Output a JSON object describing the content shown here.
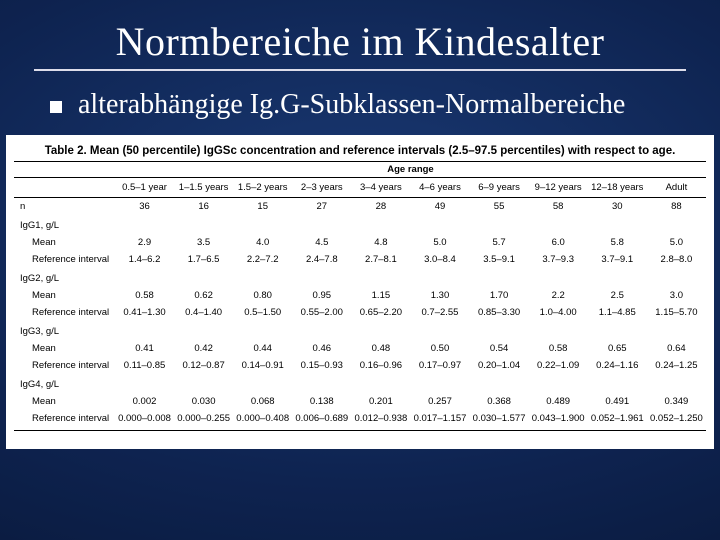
{
  "slide": {
    "title": "Normbereiche im Kindesalter",
    "bullet": "alterabhängige Ig.G-Subklassen-Normalbereiche"
  },
  "table": {
    "caption": "Table 2. Mean (50 percentile) IgGSc concentration and reference intervals (2.5–97.5 percentiles) with respect to age.",
    "age_header": "Age range",
    "columns": [
      "0.5–1 year",
      "1–1.5 years",
      "1.5–2 years",
      "2–3 years",
      "3–4 years",
      "4–6 years",
      "6–9 years",
      "9–12 years",
      "12–18 years",
      "Adult"
    ],
    "n_label": "n",
    "n_values": [
      "36",
      "16",
      "15",
      "27",
      "28",
      "49",
      "55",
      "58",
      "30",
      "88"
    ],
    "groups": [
      {
        "name": "IgG1, g/L",
        "mean_label": "Mean",
        "mean": [
          "2.9",
          "3.5",
          "4.0",
          "4.5",
          "4.8",
          "5.0",
          "5.7",
          "6.0",
          "5.8",
          "5.0"
        ],
        "ref_label": "Reference interval",
        "ref": [
          "1.4–6.2",
          "1.7–6.5",
          "2.2–7.2",
          "2.4–7.8",
          "2.7–8.1",
          "3.0–8.4",
          "3.5–9.1",
          "3.7–9.3",
          "3.7–9.1",
          "2.8–8.0"
        ]
      },
      {
        "name": "IgG2, g/L",
        "mean_label": "Mean",
        "mean": [
          "0.58",
          "0.62",
          "0.80",
          "0.95",
          "1.15",
          "1.30",
          "1.70",
          "2.2",
          "2.5",
          "3.0"
        ],
        "ref_label": "Reference interval",
        "ref": [
          "0.41–1.30",
          "0.4–1.40",
          "0.5–1.50",
          "0.55–2.00",
          "0.65–2.20",
          "0.7–2.55",
          "0.85–3.30",
          "1.0–4.00",
          "1.1–4.85",
          "1.15–5.70"
        ]
      },
      {
        "name": "IgG3, g/L",
        "mean_label": "Mean",
        "mean": [
          "0.41",
          "0.42",
          "0.44",
          "0.46",
          "0.48",
          "0.50",
          "0.54",
          "0.58",
          "0.65",
          "0.64"
        ],
        "ref_label": "Reference interval",
        "ref": [
          "0.11–0.85",
          "0.12–0.87",
          "0.14–0.91",
          "0.15–0.93",
          "0.16–0.96",
          "0.17–0.97",
          "0.20–1.04",
          "0.22–1.09",
          "0.24–1.16",
          "0.24–1.25"
        ]
      },
      {
        "name": "IgG4, g/L",
        "mean_label": "Mean",
        "mean": [
          "0.002",
          "0.030",
          "0.068",
          "0.138",
          "0.201",
          "0.257",
          "0.368",
          "0.489",
          "0.491",
          "0.349"
        ],
        "ref_label": "Reference interval",
        "ref": [
          "0.000–0.008",
          "0.000–0.255",
          "0.000–0.408",
          "0.006–0.689",
          "0.012–0.938",
          "0.017–1.157",
          "0.030–1.577",
          "0.043–1.900",
          "0.052–1.961",
          "0.052–1.250"
        ]
      }
    ]
  }
}
